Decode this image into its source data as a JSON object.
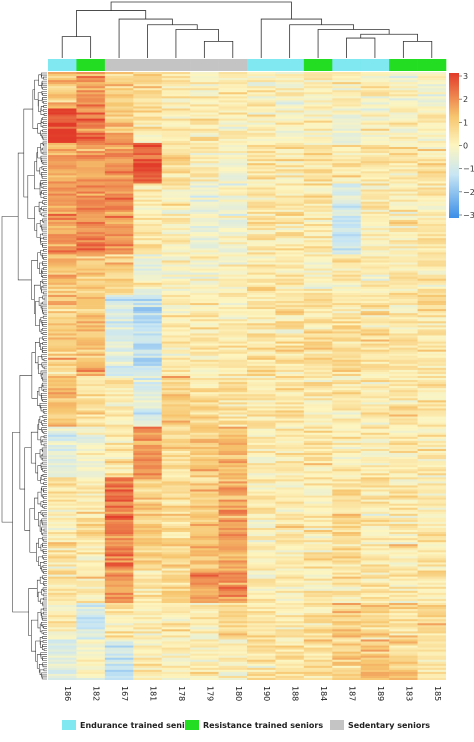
{
  "chart_data": {
    "type": "heatmap",
    "columns": [
      "186",
      "182",
      "167",
      "181",
      "178",
      "179",
      "180",
      "190",
      "188",
      "184",
      "187",
      "189",
      "183",
      "185"
    ],
    "column_groups": [
      "endurance",
      "resistance",
      "sedentary",
      "sedentary",
      "sedentary",
      "sedentary",
      "sedentary",
      "endurance",
      "endurance",
      "resistance",
      "endurance",
      "endurance",
      "resistance",
      "resistance"
    ],
    "groups": [
      {
        "id": "endurance",
        "label": "Endurance trained seniors",
        "color": "#7fe8f0"
      },
      {
        "id": "resistance",
        "label": "Resistance trained seniors",
        "color": "#22dd22"
      },
      {
        "id": "sedentary",
        "label": "Sedentary seniors",
        "color": "#c4c4c4"
      }
    ],
    "colorbar": {
      "ticks": [
        "3",
        "2",
        "1",
        "0",
        "−1",
        "−2",
        "−3"
      ],
      "range": [
        -3,
        3
      ],
      "colors": [
        "#3b8ee8",
        "#c8e6f4",
        "#fdf5c0",
        "#f7c56e",
        "#e23b2a"
      ]
    },
    "n_rows": 300,
    "blocks": [
      {
        "rows": [
          0,
          18
        ],
        "values": [
          1.2,
          1.6,
          0.9,
          0.8,
          0.3,
          0.2,
          0.3,
          0.2,
          0.1,
          0.2,
          0.2,
          0.1,
          0.1,
          0.1
        ]
      },
      {
        "rows": [
          18,
          35
        ],
        "values": [
          3.0,
          2.2,
          1.2,
          0.4,
          0.4,
          0.2,
          0.3,
          0.3,
          0.1,
          0.2,
          0.0,
          0.1,
          0.1,
          0.1
        ]
      },
      {
        "rows": [
          35,
          55
        ],
        "values": [
          1.4,
          1.6,
          1.8,
          2.4,
          0.6,
          0.2,
          0.1,
          0.6,
          0.3,
          0.4,
          0.3,
          0.5,
          0.4,
          0.5
        ]
      },
      {
        "rows": [
          55,
          90
        ],
        "values": [
          1.8,
          2.0,
          1.8,
          0.4,
          0.3,
          -0.3,
          -0.1,
          0.4,
          0.4,
          0.4,
          -1.0,
          0.3,
          0.4,
          0.4
        ]
      },
      {
        "rows": [
          90,
          110
        ],
        "values": [
          1.2,
          1.0,
          0.8,
          -0.2,
          0.1,
          0.1,
          0.2,
          0.3,
          0.5,
          0.3,
          0.3,
          0.3,
          0.4,
          0.4
        ]
      },
      {
        "rows": [
          110,
          150
        ],
        "values": [
          1.0,
          1.2,
          -0.8,
          -1.2,
          0.4,
          0.4,
          0.3,
          0.5,
          0.5,
          0.6,
          0.6,
          0.5,
          0.5,
          0.5
        ]
      },
      {
        "rows": [
          150,
          175
        ],
        "values": [
          1.3,
          0.6,
          0.3,
          -0.6,
          1.1,
          0.7,
          0.5,
          0.4,
          0.5,
          0.4,
          0.3,
          0.4,
          0.4,
          0.4
        ]
      },
      {
        "rows": [
          175,
          200
        ],
        "values": [
          -0.6,
          -0.2,
          0.3,
          1.8,
          0.6,
          1.1,
          1.4,
          0.3,
          0.4,
          0.5,
          0.3,
          0.4,
          0.4,
          0.4
        ]
      },
      {
        "rows": [
          200,
          245
        ],
        "values": [
          0.3,
          0.4,
          2.2,
          1.0,
          0.7,
          1.0,
          1.6,
          0.3,
          0.4,
          0.4,
          0.6,
          0.4,
          0.4,
          0.4
        ]
      },
      {
        "rows": [
          245,
          262
        ],
        "values": [
          0.4,
          0.5,
          1.9,
          0.6,
          0.9,
          1.6,
          2.0,
          0.4,
          0.3,
          0.4,
          0.3,
          0.4,
          0.3,
          0.4
        ]
      },
      {
        "rows": [
          262,
          280
        ],
        "values": [
          0.2,
          -0.8,
          0.4,
          0.3,
          0.3,
          0.3,
          0.7,
          0.5,
          0.4,
          0.6,
          1.0,
          0.8,
          0.6,
          0.8
        ]
      },
      {
        "rows": [
          280,
          300
        ],
        "values": [
          -0.5,
          0.1,
          -1.1,
          0.3,
          0.2,
          0.3,
          0.2,
          0.5,
          0.6,
          0.7,
          1.0,
          1.1,
          0.9,
          0.6
        ]
      }
    ],
    "top_dendrogram": [
      {
        "a": [
          0
        ],
        "b": [
          1
        ],
        "height": 0.45
      },
      {
        "a": [
          5
        ],
        "b": [
          6
        ],
        "height": 0.35
      },
      {
        "a": [
          4
        ],
        "b": [
          5,
          6
        ],
        "height": 0.6
      },
      {
        "a": [
          3
        ],
        "b": [
          4,
          5,
          6
        ],
        "height": 0.7
      },
      {
        "a": [
          2
        ],
        "b": [
          3,
          4,
          5,
          6
        ],
        "height": 0.82
      },
      {
        "a": [
          0,
          1
        ],
        "b": [
          2,
          3,
          4,
          5,
          6
        ],
        "height": 1.0
      },
      {
        "a": [
          12
        ],
        "b": [
          13
        ],
        "height": 0.35
      },
      {
        "a": [
          10
        ],
        "b": [
          11
        ],
        "height": 0.42
      },
      {
        "a": [
          10,
          11
        ],
        "b": [
          12,
          13
        ],
        "height": 0.5
      },
      {
        "a": [
          9
        ],
        "b": [
          10,
          11,
          12,
          13
        ],
        "height": 0.6
      },
      {
        "a": [
          8
        ],
        "b": [
          9,
          10,
          11,
          12,
          13
        ],
        "height": 0.7
      },
      {
        "a": [
          7
        ],
        "b": [
          8,
          9,
          10,
          11,
          12,
          13
        ],
        "height": 0.82
      },
      {
        "a": [
          0,
          1,
          2,
          3,
          4,
          5,
          6
        ],
        "b": [
          7,
          8,
          9,
          10,
          11,
          12,
          13
        ],
        "height": 1.18
      }
    ]
  }
}
